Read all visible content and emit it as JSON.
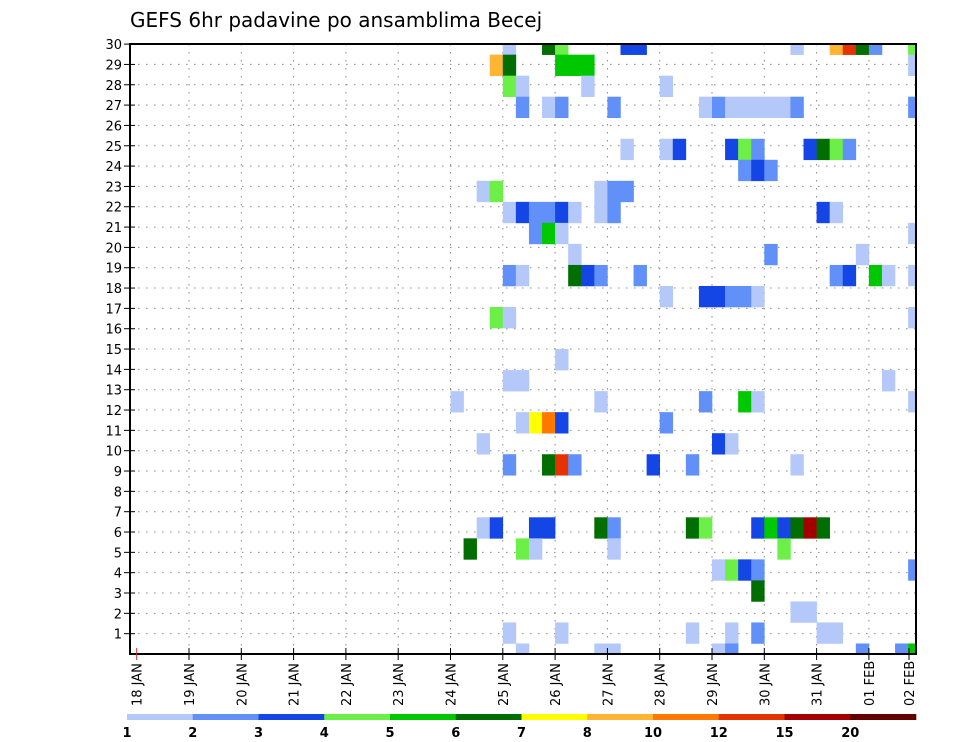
{
  "chart_data": {
    "type": "heatmap",
    "title": "GEFS 6hr padavine po ansamblima Becej",
    "xlabel": "",
    "ylabel": "",
    "x_unit": "6-hour step from 18 JAN 00Z",
    "x_tick_labels": [
      "18 JAN",
      "19 JAN",
      "20 JAN",
      "21 JAN",
      "22 JAN",
      "23 JAN",
      "24 JAN",
      "25 JAN",
      "26 JAN",
      "27 JAN",
      "28 JAN",
      "29 JAN",
      "30 JAN",
      "31 JAN",
      "01 FEB",
      "02 FEB"
    ],
    "y_tick_labels": [
      "1",
      "2",
      "3",
      "4",
      "5",
      "6",
      "7",
      "8",
      "9",
      "10",
      "11",
      "12",
      "13",
      "14",
      "15",
      "16",
      "17",
      "18",
      "19",
      "20",
      "21",
      "22",
      "23",
      "24",
      "25",
      "26",
      "27",
      "28",
      "29",
      "30"
    ],
    "ylim": [
      0,
      30
    ],
    "grid": true,
    "legend_placement": "bottom",
    "colorbar": {
      "labels": [
        "1",
        "2",
        "3",
        "4",
        "5",
        "6",
        "7",
        "8",
        "10",
        "12",
        "15",
        "20"
      ],
      "bounds": [
        1,
        2,
        3,
        4,
        5,
        6,
        7,
        8,
        10,
        12,
        15,
        20
      ],
      "colors": [
        "#b4c8fa",
        "#6090f8",
        "#1446e6",
        "#6cf048",
        "#00c800",
        "#006e00",
        "#ffff00",
        "#ffb432",
        "#ff7800",
        "#e63200",
        "#a50000",
        "#640000"
      ]
    },
    "cells_format": "[member, step, value_mm]",
    "cells": [
      [
        30,
        28,
        1.5
      ],
      [
        30,
        31,
        6.5
      ],
      [
        30,
        32,
        4.5
      ],
      [
        30,
        37,
        3.5
      ],
      [
        30,
        38,
        3.5
      ],
      [
        30,
        50,
        1.5
      ],
      [
        30,
        53,
        9
      ],
      [
        30,
        54,
        13.5
      ],
      [
        30,
        55,
        6.5
      ],
      [
        30,
        56,
        2.5
      ],
      [
        30,
        59,
        4.5
      ],
      [
        29,
        27,
        9
      ],
      [
        29,
        28,
        6.5
      ],
      [
        29,
        32,
        5.5
      ],
      [
        29,
        33,
        5.5
      ],
      [
        29,
        34,
        5.5
      ],
      [
        29,
        59,
        1.5
      ],
      [
        28,
        28,
        4.5
      ],
      [
        28,
        29,
        1.5
      ],
      [
        28,
        34,
        1.5
      ],
      [
        28,
        40,
        1.5
      ],
      [
        27,
        29,
        2.5
      ],
      [
        27,
        31,
        1.5
      ],
      [
        27,
        32,
        2.5
      ],
      [
        27,
        36,
        2.5
      ],
      [
        27,
        43,
        1.5
      ],
      [
        27,
        44,
        2.5
      ],
      [
        27,
        45,
        1.5
      ],
      [
        27,
        46,
        1.5
      ],
      [
        27,
        47,
        1.5
      ],
      [
        27,
        48,
        1.5
      ],
      [
        27,
        49,
        1.5
      ],
      [
        27,
        50,
        2.5
      ],
      [
        27,
        59,
        2.5
      ],
      [
        25,
        37,
        1.5
      ],
      [
        25,
        40,
        1.5
      ],
      [
        25,
        41,
        3.5
      ],
      [
        25,
        45,
        3.5
      ],
      [
        25,
        46,
        4.5
      ],
      [
        25,
        47,
        2.5
      ],
      [
        25,
        51,
        3.5
      ],
      [
        25,
        52,
        6.5
      ],
      [
        25,
        53,
        4.5
      ],
      [
        25,
        54,
        2.5
      ],
      [
        24,
        46,
        2.5
      ],
      [
        24,
        47,
        3.5
      ],
      [
        24,
        48,
        2.5
      ],
      [
        23,
        26,
        1.5
      ],
      [
        23,
        27,
        4.5
      ],
      [
        23,
        35,
        1.5
      ],
      [
        23,
        36,
        2.5
      ],
      [
        23,
        37,
        2.5
      ],
      [
        22,
        28,
        1.5
      ],
      [
        22,
        29,
        3.5
      ],
      [
        22,
        30,
        2.5
      ],
      [
        22,
        31,
        2.5
      ],
      [
        22,
        32,
        3.5
      ],
      [
        22,
        33,
        1.5
      ],
      [
        22,
        35,
        1.5
      ],
      [
        22,
        36,
        2.5
      ],
      [
        22,
        52,
        3.5
      ],
      [
        22,
        53,
        1.5
      ],
      [
        21,
        30,
        2.5
      ],
      [
        21,
        31,
        5.5
      ],
      [
        21,
        32,
        1.5
      ],
      [
        21,
        59,
        1.5
      ],
      [
        20,
        33,
        1.5
      ],
      [
        20,
        48,
        2.5
      ],
      [
        20,
        55,
        1.5
      ],
      [
        19,
        28,
        2.5
      ],
      [
        19,
        29,
        1.5
      ],
      [
        19,
        33,
        6.5
      ],
      [
        19,
        34,
        3.5
      ],
      [
        19,
        35,
        2.5
      ],
      [
        19,
        38,
        2.5
      ],
      [
        19,
        53,
        2.5
      ],
      [
        19,
        54,
        3.5
      ],
      [
        19,
        56,
        5.5
      ],
      [
        19,
        57,
        1.5
      ],
      [
        19,
        59,
        1.5
      ],
      [
        18,
        40,
        1.5
      ],
      [
        18,
        43,
        3.5
      ],
      [
        18,
        44,
        3.5
      ],
      [
        18,
        45,
        2.5
      ],
      [
        18,
        46,
        2.5
      ],
      [
        18,
        47,
        1.5
      ],
      [
        17,
        27,
        4.5
      ],
      [
        17,
        28,
        1.5
      ],
      [
        17,
        59,
        1.5
      ],
      [
        15,
        32,
        1.5
      ],
      [
        14,
        28,
        1.5
      ],
      [
        14,
        29,
        1.5
      ],
      [
        14,
        57,
        1.5
      ],
      [
        13,
        24,
        1.5
      ],
      [
        13,
        35,
        1.5
      ],
      [
        13,
        43,
        2.5
      ],
      [
        13,
        46,
        5.5
      ],
      [
        13,
        47,
        1.5
      ],
      [
        13,
        59,
        1.5
      ],
      [
        12,
        29,
        1.5
      ],
      [
        12,
        30,
        7.5
      ],
      [
        12,
        31,
        11
      ],
      [
        12,
        32,
        3.5
      ],
      [
        12,
        40,
        2.5
      ],
      [
        11,
        26,
        1.5
      ],
      [
        11,
        44,
        3.5
      ],
      [
        11,
        45,
        1.5
      ],
      [
        10,
        28,
        2.5
      ],
      [
        10,
        31,
        6.5
      ],
      [
        10,
        32,
        13.5
      ],
      [
        10,
        33,
        2.5
      ],
      [
        10,
        39,
        3.5
      ],
      [
        10,
        42,
        2.5
      ],
      [
        10,
        50,
        1.5
      ],
      [
        7,
        26,
        1.5
      ],
      [
        7,
        27,
        3.5
      ],
      [
        7,
        30,
        3.5
      ],
      [
        7,
        31,
        3.5
      ],
      [
        7,
        35,
        6.5
      ],
      [
        7,
        36,
        2.5
      ],
      [
        7,
        42,
        6.5
      ],
      [
        7,
        43,
        4.5
      ],
      [
        7,
        47,
        3.5
      ],
      [
        7,
        48,
        5.5
      ],
      [
        7,
        49,
        3.5
      ],
      [
        7,
        50,
        6.5
      ],
      [
        7,
        51,
        17.5
      ],
      [
        7,
        52,
        6.5
      ],
      [
        6,
        25,
        6.5
      ],
      [
        6,
        29,
        4.5
      ],
      [
        6,
        30,
        1.5
      ],
      [
        6,
        36,
        1.5
      ],
      [
        6,
        49,
        4.5
      ],
      [
        5,
        44,
        1.5
      ],
      [
        5,
        45,
        4.5
      ],
      [
        5,
        46,
        3.5
      ],
      [
        5,
        47,
        2.5
      ],
      [
        5,
        59,
        2.5
      ],
      [
        4,
        47,
        6.5
      ],
      [
        3,
        50,
        1.5
      ],
      [
        3,
        51,
        1.5
      ],
      [
        2,
        28,
        1.5
      ],
      [
        2,
        32,
        1.5
      ],
      [
        2,
        42,
        1.5
      ],
      [
        2,
        45,
        1.5
      ],
      [
        2,
        47,
        2.5
      ],
      [
        2,
        52,
        1.5
      ],
      [
        2,
        53,
        1.5
      ],
      [
        1,
        29,
        1.5
      ],
      [
        1,
        35,
        1.5
      ],
      [
        1,
        36,
        1.5
      ],
      [
        1,
        44,
        1.5
      ],
      [
        1,
        45,
        2.5
      ],
      [
        1,
        55,
        2.5
      ],
      [
        1,
        58,
        2.5
      ],
      [
        1,
        59,
        5.5
      ]
    ]
  }
}
